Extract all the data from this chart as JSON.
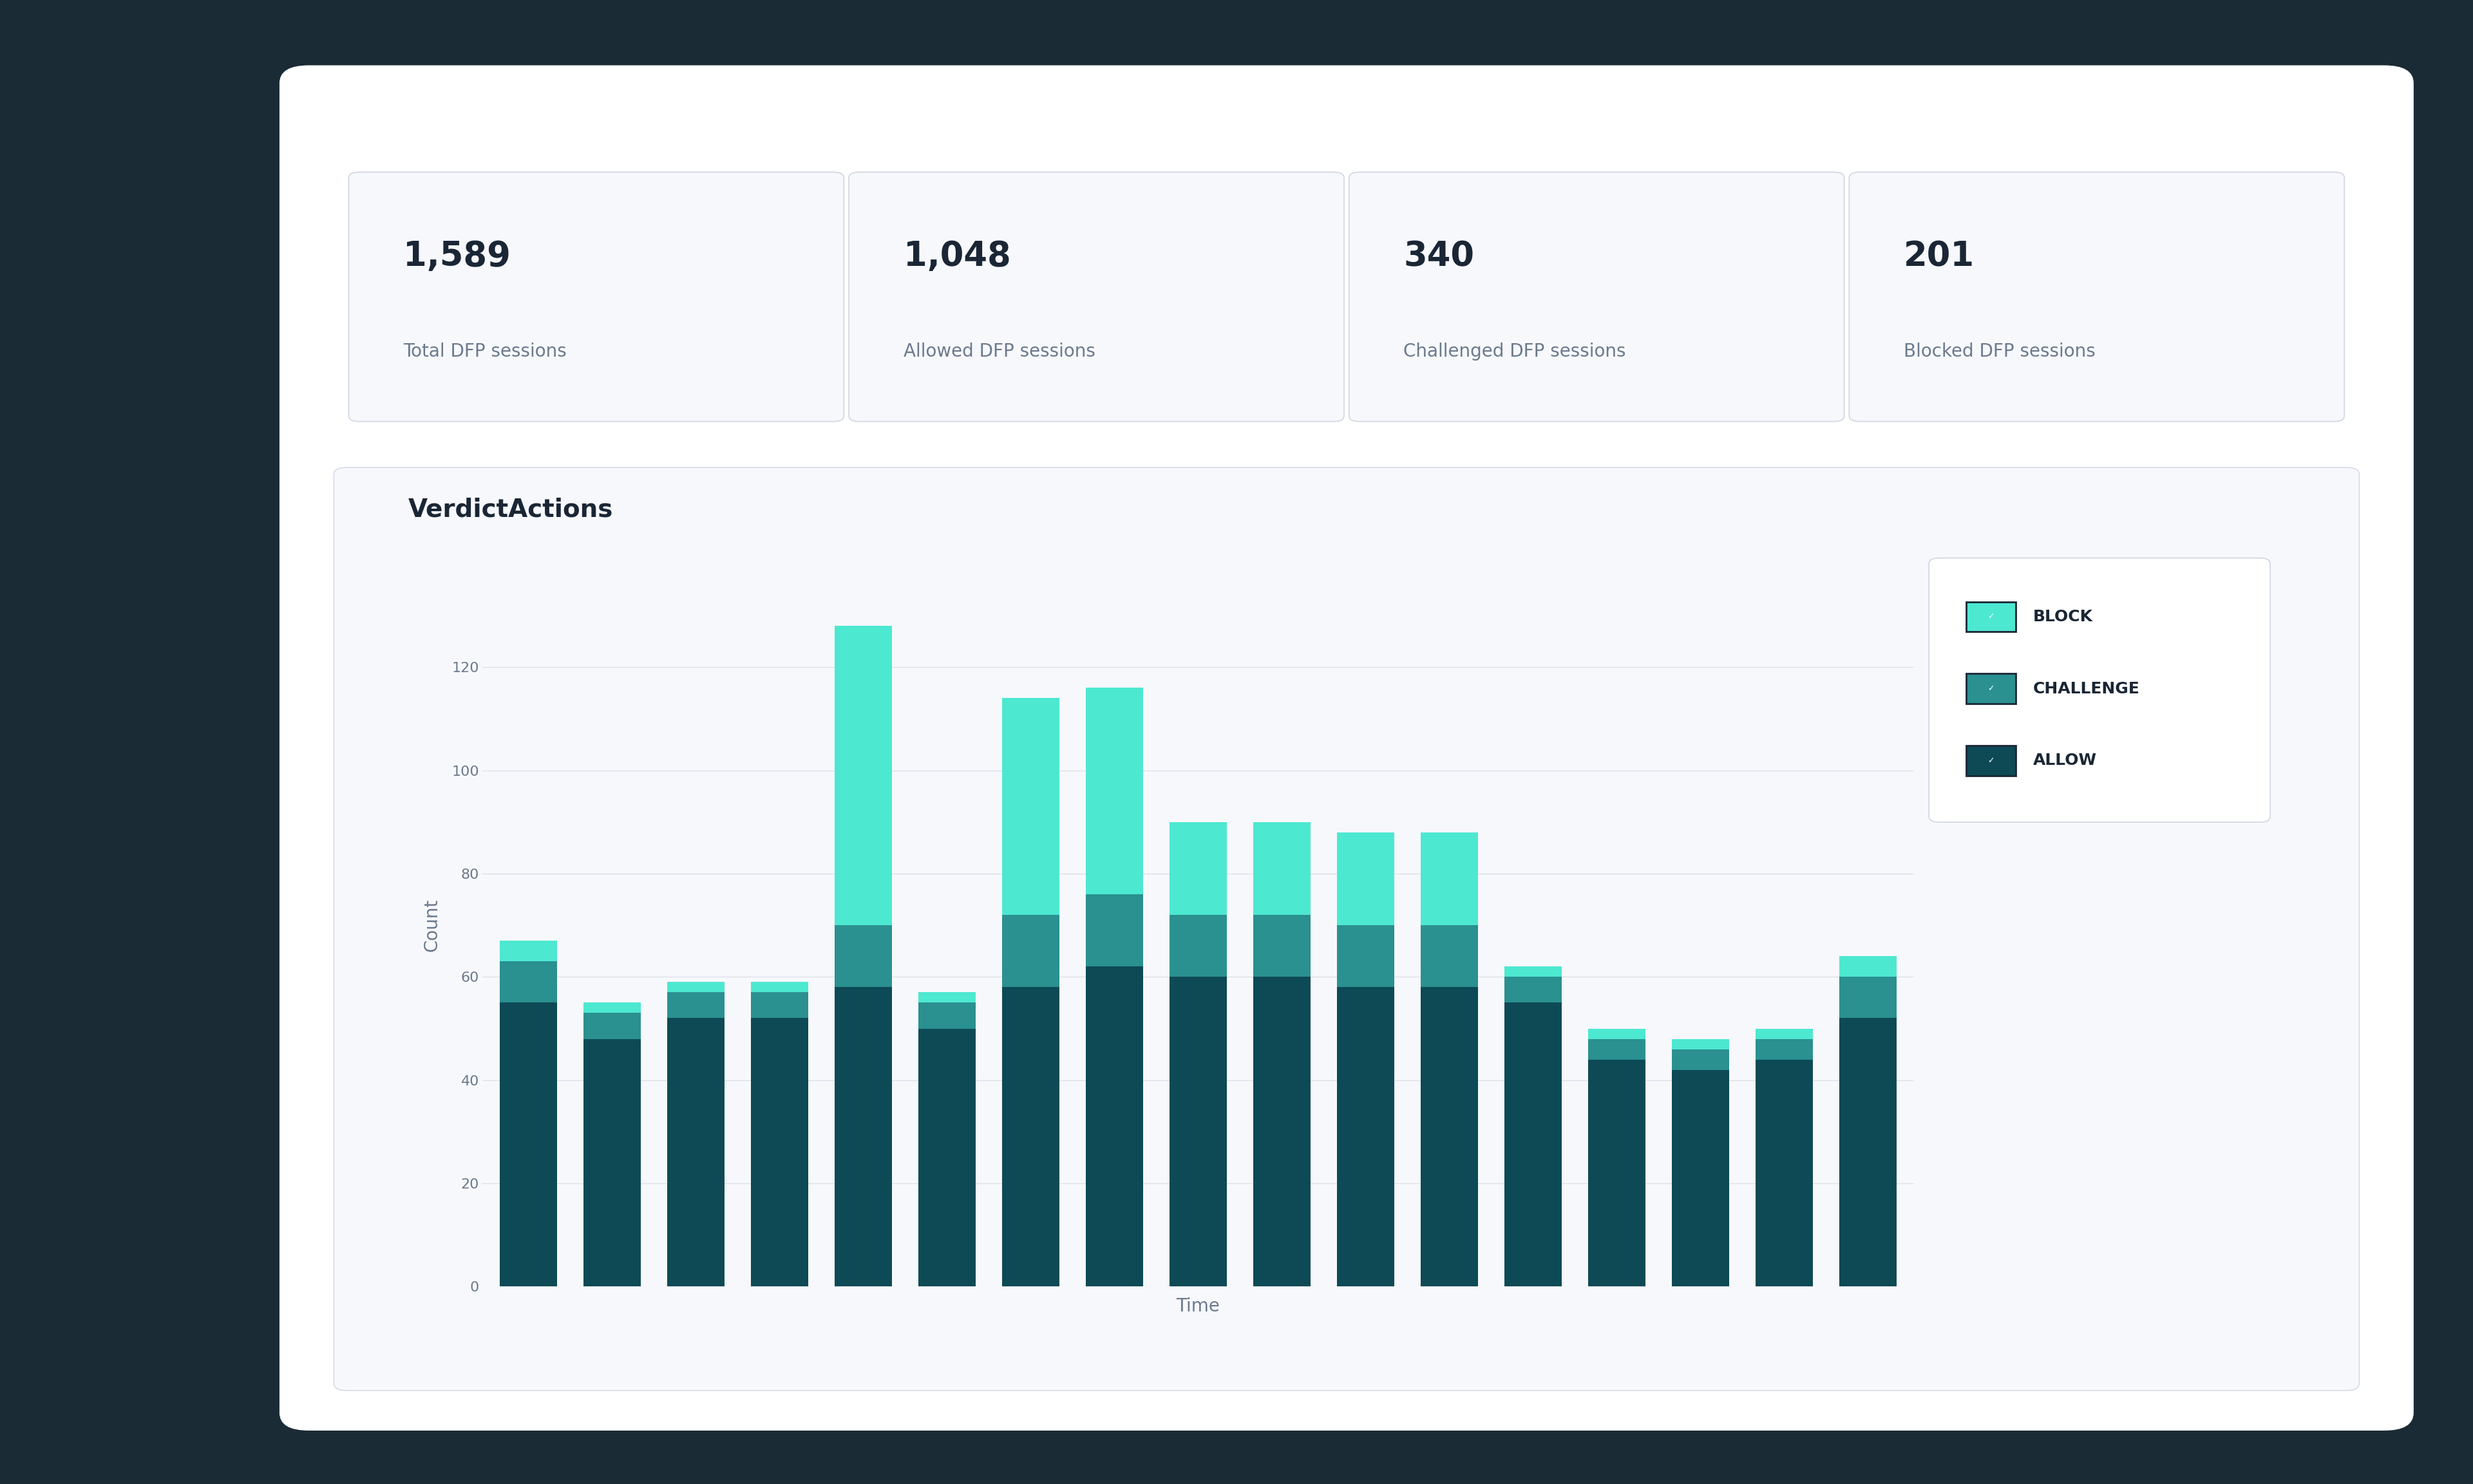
{
  "bg_color": "#1b2b36",
  "card_bg": "#ffffff",
  "card_border": "#d8dce6",
  "title_color": "#1a2635",
  "subtitle_color": "#6b7a8d",
  "metrics": [
    {
      "value": "1,589",
      "label": "Total DFP sessions"
    },
    {
      "value": "1,048",
      "label": "Allowed DFP sessions"
    },
    {
      "value": "340",
      "label": "Challenged DFP sessions"
    },
    {
      "value": "201",
      "label": "Blocked DFP sessions"
    }
  ],
  "chart_title": "VerdictActions",
  "xlabel": "Time",
  "ylabel": "Count",
  "color_block": "#4de8d0",
  "color_challenge": "#2a9090",
  "color_allow": "#0d4a55",
  "legend_labels": [
    "BLOCK",
    "CHALLENGE",
    "ALLOW"
  ],
  "bar_data": {
    "allow": [
      55,
      48,
      52,
      52,
      58,
      50,
      58,
      62,
      60,
      60,
      58,
      58,
      55,
      44,
      42,
      44,
      52
    ],
    "challenge": [
      8,
      5,
      5,
      5,
      12,
      5,
      14,
      14,
      12,
      12,
      12,
      12,
      5,
      4,
      4,
      4,
      8
    ],
    "block": [
      4,
      2,
      2,
      2,
      58,
      2,
      42,
      40,
      18,
      18,
      18,
      18,
      2,
      2,
      2,
      2,
      4
    ]
  },
  "ylim_max": 140,
  "yticks": [
    0,
    20,
    40,
    60,
    80,
    100,
    120
  ],
  "n_bars": 17
}
